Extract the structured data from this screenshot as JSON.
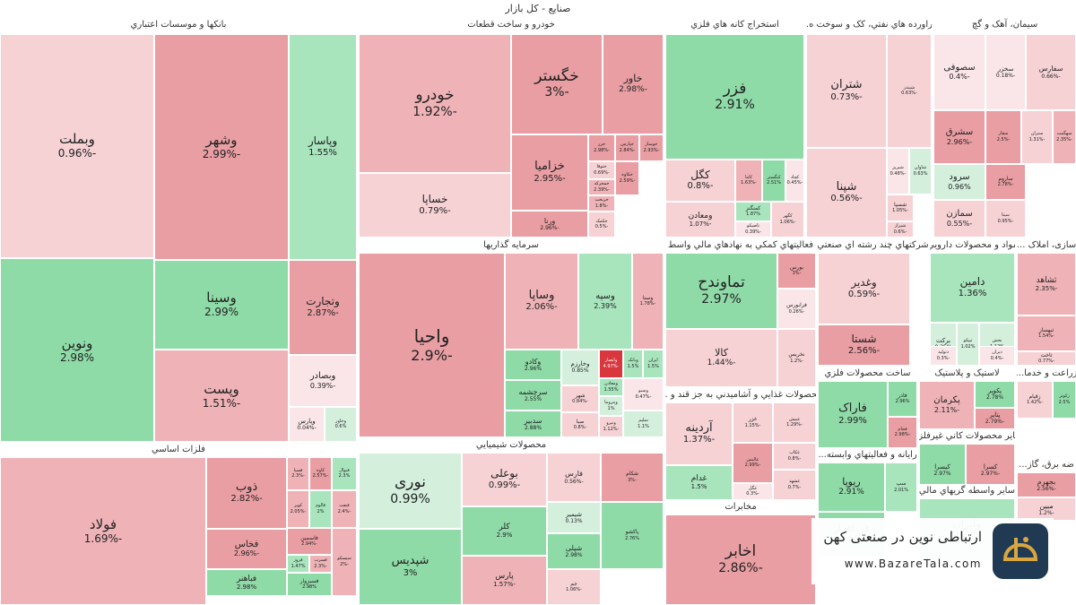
{
  "title": "صنایع - کل بازار",
  "colors": {
    "pos_strong": "#8fdba8",
    "pos_mid": "#a8e5bd",
    "pos_light": "#d4f0dd",
    "neg_strong": "#e99ea3",
    "neg_mid": "#efb3b7",
    "neg_light": "#f6d2d5",
    "neg_faint": "#fae6e8",
    "red_tile": "#d9363e"
  },
  "watermark": {
    "line1": "ارتباطی نوین در صنعتی کهن",
    "line2": "www.BazareTala.com",
    "logo_icon": "bazaretala-logo"
  },
  "chart_data": {
    "type": "treemap",
    "title": "صنایع - کل بازار",
    "sectors": [
      {
        "name": "بانکها و موسسات اعتباري",
        "stocks": [
          {
            "name": "وبملت",
            "change": -0.96
          },
          {
            "name": "ونوین",
            "change": 2.98
          },
          {
            "name": "وشهر",
            "change": -2.99
          },
          {
            "name": "وسینا",
            "change": 2.99
          },
          {
            "name": "وپست",
            "change": -1.51
          },
          {
            "name": "وپاسار",
            "change": 1.55
          },
          {
            "name": "وتجارت",
            "change": -2.87
          },
          {
            "name": "وبصادر",
            "change": -0.39
          },
          {
            "name": "وپارس",
            "change": -0.04
          },
          {
            "name": "وخاور",
            "change": 0.6
          }
        ]
      },
      {
        "name": "خودرو و ساخت قطعات",
        "stocks": [
          {
            "name": "خودرو",
            "change": -1.92
          },
          {
            "name": "خساپا",
            "change": -0.79
          },
          {
            "name": "خگستر",
            "change": -3
          },
          {
            "name": "خاور",
            "change": -2.98
          },
          {
            "name": "خزامیا",
            "change": -2.95
          },
          {
            "name": "ورنا",
            "change": -2.96
          },
          {
            "name": "خزر",
            "change": -2.98
          },
          {
            "name": "خپارس",
            "change": -2.84
          },
          {
            "name": "خوساز",
            "change": -2.93
          },
          {
            "name": "ختوقا",
            "change": -0.69
          },
          {
            "name": "خمحرکه",
            "change": -2.39
          },
          {
            "name": "خکاوه",
            "change": -2.59
          },
          {
            "name": "خریخت",
            "change": -1.8
          },
          {
            "name": "خکمک",
            "change": -0.5
          }
        ]
      },
      {
        "name": "استخراج کانه هاي فلزي",
        "stocks": [
          {
            "name": "فزر",
            "change": 2.91
          },
          {
            "name": "کگل",
            "change": -0.8
          },
          {
            "name": "ومعادن",
            "change": -1.07
          },
          {
            "name": "کاما",
            "change": -1.63
          },
          {
            "name": "کچاد",
            "change": -0.45
          },
          {
            "name": "کنگستر",
            "change": 2.51
          },
          {
            "name": "کمنگنز",
            "change": 1.87
          },
          {
            "name": "تاصیکو",
            "change": -0.39
          },
          {
            "name": "کگهر",
            "change": -1.06
          }
        ]
      },
      {
        "name": "فراورده هاي نفتي، کک و سوخت ه...",
        "stocks": [
          {
            "name": "شتران",
            "change": -0.73
          },
          {
            "name": "شبندر",
            "change": -0.63
          },
          {
            "name": "شپنا",
            "change": -0.56
          },
          {
            "name": "شبریز",
            "change": -0.48
          },
          {
            "name": "شاوان",
            "change": 0.63
          },
          {
            "name": "شسپا",
            "change": -1.05
          },
          {
            "name": "شیراز",
            "change": -0.6
          }
        ]
      },
      {
        "name": "سیمان، آهک و گچ",
        "stocks": [
          {
            "name": "سصوفی",
            "change": -0.4
          },
          {
            "name": "سخزر",
            "change": -0.18
          },
          {
            "name": "سفارس",
            "change": -0.66
          },
          {
            "name": "سشرق",
            "change": -2.96
          },
          {
            "name": "سفار",
            "change": -2.5
          },
          {
            "name": "ستران",
            "change": -1.31
          },
          {
            "name": "سهگمت",
            "change": -2.35
          },
          {
            "name": "سرود",
            "change": 0.96
          },
          {
            "name": "ساروم",
            "change": -2.78
          },
          {
            "name": "سمازن",
            "change": -0.55
          },
          {
            "name": "سیتا",
            "change": -0.95
          },
          {
            "name": "سهرم",
            "change": -1.2
          }
        ]
      },
      {
        "name": "سرمایه گذاریها",
        "stocks": [
          {
            "name": "واحیا",
            "change": -2.9
          },
          {
            "name": "وساپا",
            "change": -2.06
          },
          {
            "name": "وسپه",
            "change": 2.39
          },
          {
            "name": "وسنا",
            "change": -1.78
          },
          {
            "name": "وکادو",
            "change": 2.96
          },
          {
            "name": "سرچشمه",
            "change": 2.55
          },
          {
            "name": "سدبیر",
            "change": 2.88
          },
          {
            "name": "وخارزم",
            "change": 0.85
          },
          {
            "name": "شهر",
            "change": -0.84
          },
          {
            "name": "صبا",
            "change": -0.8
          },
          {
            "name": "وانصار",
            "change": -4.97
          },
          {
            "name": "ومعادن",
            "change": 1.55
          },
          {
            "name": "وبانک",
            "change": 1.5
          },
          {
            "name": "ایران",
            "change": 1.5
          },
          {
            "name": "وپتروما",
            "change": 1.0
          },
          {
            "name": "ونیرو",
            "change": -1.12
          },
          {
            "name": "وسبو",
            "change": -0.47
          },
          {
            "name": "سلیم",
            "change": 1.1
          }
        ]
      },
      {
        "name": "فعالیتهاي کمکي به نهادهاي مالي واسط",
        "stocks": [
          {
            "name": "تماوندح",
            "change": 2.97
          },
          {
            "name": "بورس",
            "change": -3
          },
          {
            "name": "فرابورس",
            "change": -0.26
          },
          {
            "name": "کالا",
            "change": -1.44
          },
          {
            "name": "نخریس",
            "change": -1.2
          }
        ]
      },
      {
        "name": "شرکتهاي چند رشته اي صنعتي",
        "stocks": [
          {
            "name": "وغدیر",
            "change": -0.59
          },
          {
            "name": "شستا",
            "change": -2.56
          }
        ]
      },
      {
        "name": "مواد و محصولات دارويي",
        "stocks": [
          {
            "name": "دامین",
            "change": 1.36
          },
          {
            "name": "برکت",
            "change": 0.25
          },
          {
            "name": "تیپکو",
            "change": 1.02
          },
          {
            "name": "بخش",
            "change": 1.12
          },
          {
            "name": "دتولید",
            "change": -0.3
          },
          {
            "name": "دیران",
            "change": -0.4
          }
        ]
      },
      {
        "name": "سازی، املاک ...",
        "stocks": [
          {
            "name": "ثشاهد",
            "change": -2.35
          },
          {
            "name": "ثبهساز",
            "change": -1.54
          },
          {
            "name": "ثاخت",
            "change": -0.77
          }
        ]
      },
      {
        "name": "محصولات غذايي و آشاميدني به جز قند و ...",
        "stocks": [
          {
            "name": "آردینه",
            "change": -1.37
          },
          {
            "name": "غزر",
            "change": -1.15
          },
          {
            "name": "غنیش",
            "change": -1.29
          },
          {
            "name": "غدام",
            "change": 1.5
          },
          {
            "name": "عالیس",
            "change": -2.99
          },
          {
            "name": "غکاب",
            "change": -0.8
          },
          {
            "name": "غگل",
            "change": -0.3
          },
          {
            "name": "غشهد",
            "change": -0.7
          }
        ]
      },
      {
        "name": "مخابرات",
        "stocks": [
          {
            "name": "اخابر",
            "change": -2.86
          }
        ]
      },
      {
        "name": "ساخت محصولات فلزي",
        "stocks": [
          {
            "name": "فاراک",
            "change": 2.99
          },
          {
            "name": "فاذر",
            "change": 2.96
          },
          {
            "name": "فجام",
            "change": -2.98
          }
        ]
      },
      {
        "name": "لاستیک و پلاستیک",
        "stocks": [
          {
            "name": "پکرمان",
            "change": -2.11
          },
          {
            "name": "پکویر",
            "change": 2.78
          },
          {
            "name": "پتایر",
            "change": -2.79
          }
        ]
      },
      {
        "name": "زراعت و خدما...",
        "stocks": [
          {
            "name": "زقیام",
            "change": -1.42
          },
          {
            "name": "زکوثر",
            "change": 2.5
          }
        ]
      },
      {
        "name": "سایر محصولات کاني غیرفلزي",
        "stocks": [
          {
            "name": "کیسرا",
            "change": 2.97
          },
          {
            "name": "کسرا",
            "change": -2.97
          },
          {
            "name": "کفرا",
            "change": -1.8
          }
        ]
      },
      {
        "name": "رایانه و فعالیتهاي وابسته...",
        "stocks": [
          {
            "name": "ریوپا",
            "change": 2.91
          },
          {
            "name": "سپ",
            "change": 2.01
          },
          {
            "name": "فن افزار",
            "change": 2.5
          }
        ]
      },
      {
        "name": "سایر واسطه گریهاي مالي",
        "stocks": [
          {
            "name": "وایران",
            "change": 2.04
          }
        ]
      },
      {
        "name": "ضه برق، گاز...",
        "stocks": [
          {
            "name": "بجهرم",
            "change": -2.56
          },
          {
            "name": "مبین",
            "change": -1.2
          }
        ]
      },
      {
        "name": "فلزات اساسي",
        "stocks": [
          {
            "name": "فولاد",
            "change": -1.69
          },
          {
            "name": "ذوب",
            "change": -2.82
          },
          {
            "name": "فخاس",
            "change": -2.96
          },
          {
            "name": "فباهنر",
            "change": 2.98
          },
          {
            "name": "فسپا",
            "change": -2.3
          },
          {
            "name": "کاوه",
            "change": -2.57
          },
          {
            "name": "فنوال",
            "change": 2.3
          },
          {
            "name": "کویر",
            "change": -2.05
          },
          {
            "name": "فالوم",
            "change": 2.0
          },
          {
            "name": "فاسمین",
            "change": -2.94
          },
          {
            "name": "فروز",
            "change": 1.47
          },
          {
            "name": "فسرب",
            "change": -2.3
          },
          {
            "name": "فنفت",
            "change": -2.4
          },
          {
            "name": "فسبزوار",
            "change": 2.98
          },
          {
            "name": "سیسکو",
            "change": -2.0
          }
        ]
      },
      {
        "name": "محصولات شیمیایي",
        "stocks": [
          {
            "name": "نوری",
            "change": 0.99
          },
          {
            "name": "شپدیس",
            "change": 3
          },
          {
            "name": "بوعلی",
            "change": -0.99
          },
          {
            "name": "کلر",
            "change": 2.9
          },
          {
            "name": "پارس",
            "change": -1.57
          },
          {
            "name": "فارس",
            "change": -0.56
          },
          {
            "name": "شکام",
            "change": -3
          },
          {
            "name": "شیمیر",
            "change": 0.13
          },
          {
            "name": "شپلی",
            "change": 2.98
          },
          {
            "name": "پاکشو",
            "change": 2.76
          },
          {
            "name": "جم",
            "change": -1.06
          }
        ]
      }
    ]
  }
}
